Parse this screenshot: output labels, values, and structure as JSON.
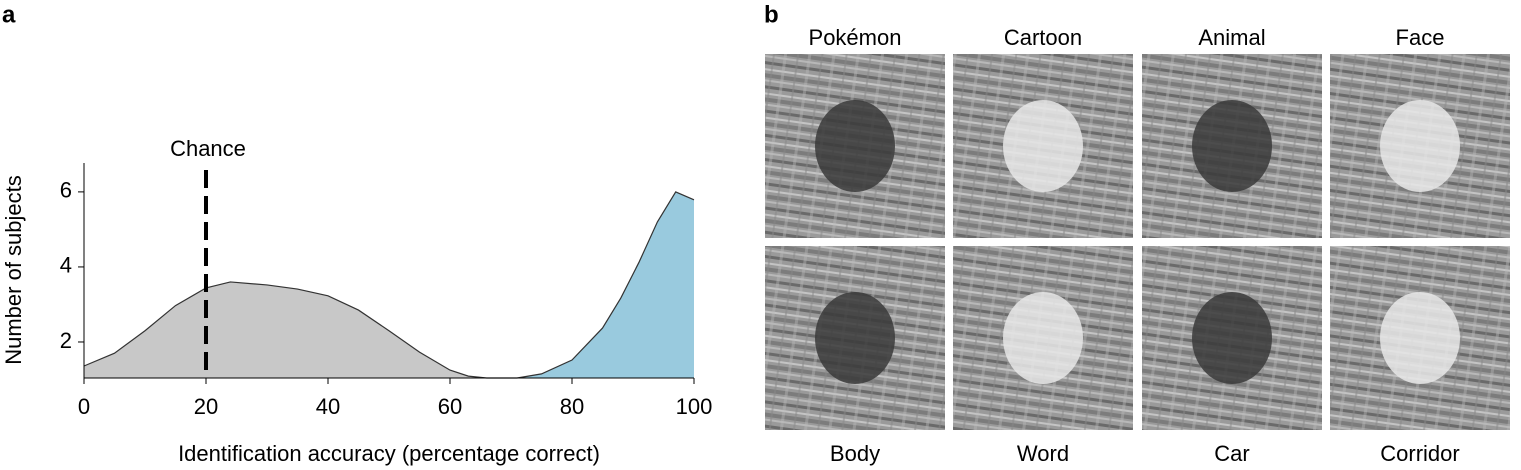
{
  "panel_labels": [
    "a",
    "b"
  ],
  "chart_data": {
    "type": "area",
    "xlabel": "Identification accuracy (percentage correct)",
    "ylabel": "Number of subjects",
    "annotation": {
      "text": "Chance",
      "x": 20
    },
    "xlim": [
      0,
      100
    ],
    "xticks": [
      0,
      20,
      40,
      60,
      80,
      100
    ],
    "ylim": [
      1.04,
      6.77
    ],
    "yticks": [
      2,
      4,
      6
    ],
    "series": [
      {
        "color": "#c8c8c8",
        "x": [
          0,
          5,
          10,
          15,
          20,
          24,
          30,
          35,
          40,
          45,
          50,
          55,
          60,
          63,
          66
        ],
        "values": [
          1.36,
          1.7,
          2.3,
          2.97,
          3.44,
          3.6,
          3.52,
          3.41,
          3.23,
          2.85,
          2.3,
          1.73,
          1.25,
          1.09,
          1.04
        ]
      },
      {
        "color": "#99cade",
        "x": [
          71,
          75,
          80,
          85,
          88,
          91,
          94,
          97,
          100
        ],
        "values": [
          1.04,
          1.15,
          1.52,
          2.37,
          3.17,
          4.13,
          5.2,
          6.0,
          5.79
        ]
      }
    ]
  },
  "images": {
    "top": [
      "Pokémon",
      "Cartoon",
      "Animal",
      "Face"
    ],
    "bottom": [
      "Body",
      "Word",
      "Car",
      "Corridor"
    ]
  }
}
